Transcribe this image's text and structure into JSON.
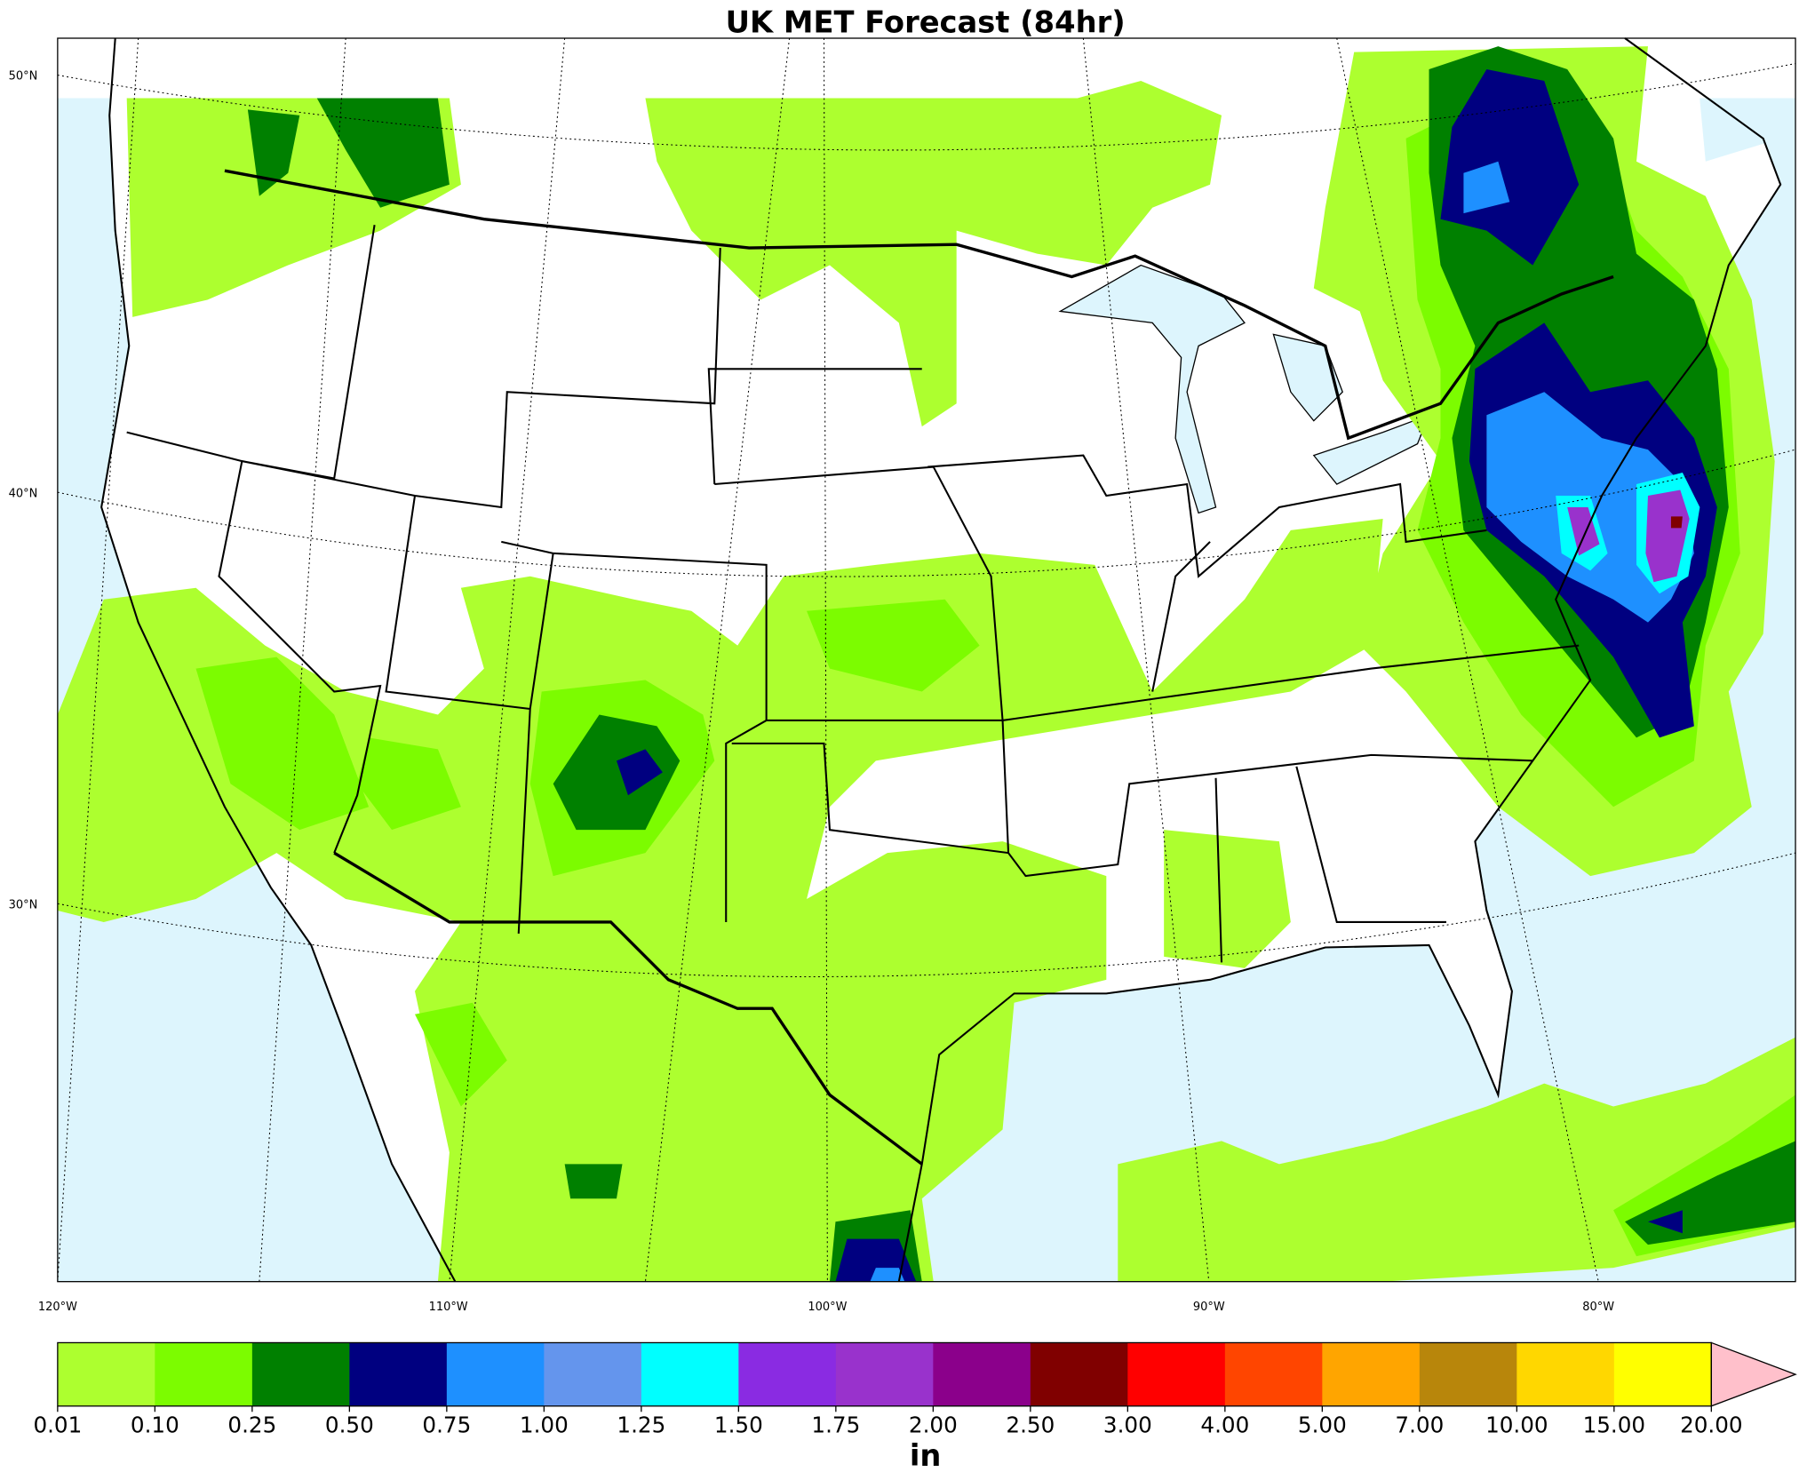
{
  "title": "UK MET Forecast (84hr)",
  "latitude_labels": [
    "50°N",
    "40°N",
    "30°N"
  ],
  "longitude_labels": [
    "120°W",
    "110°W",
    "100°W",
    "90°W",
    "80°W"
  ],
  "colorbar": {
    "levels": [
      "0.01",
      "0.10",
      "0.25",
      "0.50",
      "0.75",
      "1.00",
      "1.25",
      "1.50",
      "1.75",
      "2.00",
      "2.50",
      "3.00",
      "4.00",
      "5.00",
      "7.00",
      "10.00",
      "15.00",
      "20.00"
    ],
    "colors": [
      "#adff2f",
      "#7cfc00",
      "#008000",
      "#000080",
      "#1e90ff",
      "#6495ed",
      "#00ffff",
      "#8a2be2",
      "#9932cc",
      "#8b008b",
      "#800000",
      "#ff0000",
      "#ff4500",
      "#ffa500",
      "#b8860b",
      "#ffd700",
      "#ffff00",
      "#ffc0cb"
    ],
    "unit": "in"
  }
}
